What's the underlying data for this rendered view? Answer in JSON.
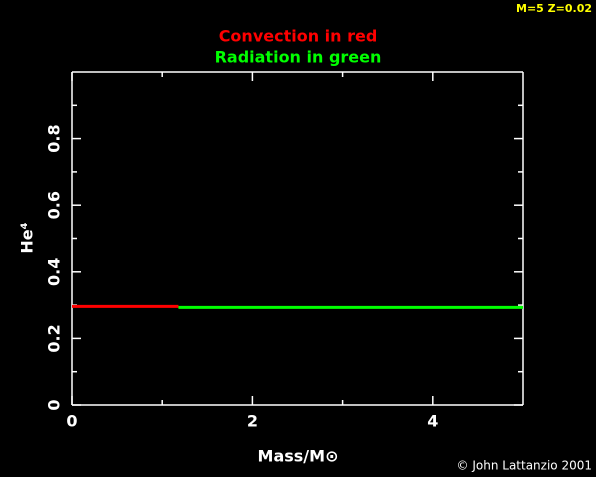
{
  "chart_data": {
    "type": "line",
    "annotation": "M=5 Z=0.02",
    "credit": "© John Lattanzio 2001",
    "x_label": "Mass/M⊙",
    "y_label": "He⁴",
    "xlim": [
      0,
      5
    ],
    "ylim": [
      0,
      1
    ],
    "xticks": [
      0,
      2,
      4
    ],
    "xminorticks": [
      1,
      3
    ],
    "yticks": [
      0,
      0.2,
      0.4,
      0.6,
      0.8
    ],
    "yminorticks": [
      0.1,
      0.3,
      0.5,
      0.7,
      0.9
    ],
    "series": [
      {
        "name": "Convection in red",
        "color": "#ff0000",
        "x": [
          0,
          1.18
        ],
        "values": [
          0.296,
          0.296
        ]
      },
      {
        "name": "Radiation in green",
        "color": "#00ff00",
        "x": [
          1.18,
          5
        ],
        "values": [
          0.293,
          0.293
        ]
      }
    ]
  }
}
